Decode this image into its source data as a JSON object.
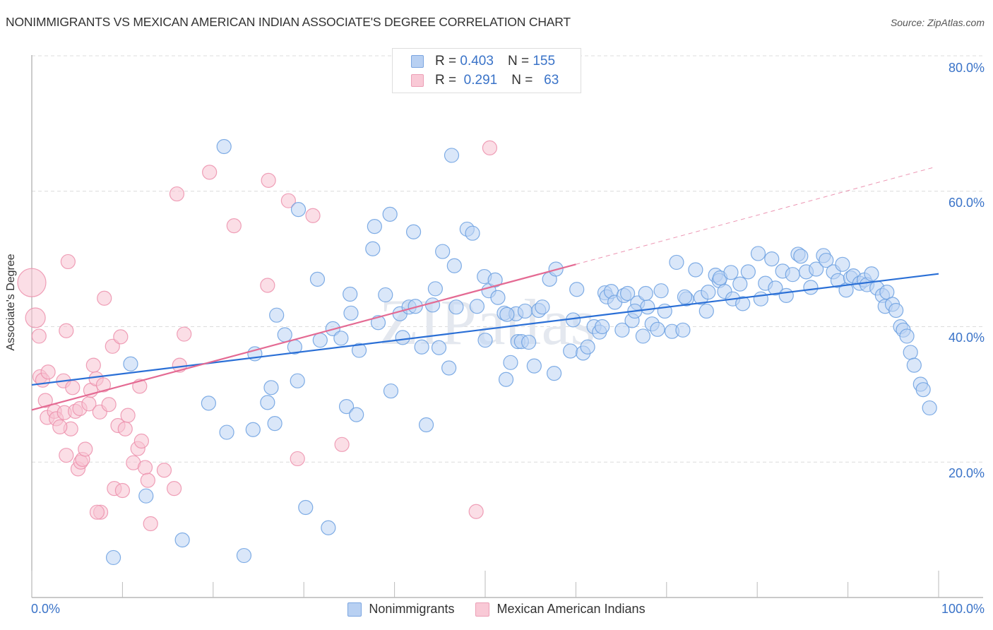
{
  "header": {
    "title": "NONIMMIGRANTS VS MEXICAN AMERICAN INDIAN ASSOCIATE'S DEGREE CORRELATION CHART",
    "source": "Source: ZipAtlas.com"
  },
  "legend": {
    "rows": [
      {
        "r_label": "R =",
        "r_value": "0.403",
        "n_label": "N =",
        "n_value": "155"
      },
      {
        "r_label": "R =",
        "r_value": "0.291",
        "n_label": "N =",
        "n_value": "63"
      }
    ]
  },
  "bottom_legend": [
    "Nonimmigrants",
    "Mexican American Indians"
  ],
  "watermark": "ZIPatlas",
  "chart_data": {
    "type": "scatter",
    "title": "NONIMMIGRANTS VS MEXICAN AMERICAN INDIAN ASSOCIATE'S DEGREE CORRELATION CHART",
    "xlabel": "",
    "ylabel": "Associate's Degree",
    "xlim": [
      0,
      100
    ],
    "ylim": [
      0,
      82
    ],
    "x_tick_labels": [
      "0.0%",
      "100.0%"
    ],
    "y_ticks": [
      20,
      40,
      60,
      80
    ],
    "y_tick_labels": [
      "20.0%",
      "40.0%",
      "60.0%",
      "80.0%"
    ],
    "grid": "horizontal-dashed",
    "legend_position": "top-center",
    "colors": {
      "Nonimmigrants": "#6a9fe0",
      "Mexican American Indians": "#ec8fab",
      "blue_line": "#2a6fd6",
      "pink_line": "#e46a93"
    },
    "series": [
      {
        "name": "Nonimmigrants",
        "R": 0.403,
        "N": 155,
        "trend": {
          "x0": 0,
          "y0": 31.4,
          "x1": 100,
          "y1": 47.8
        },
        "points": [
          [
            10.9,
            34.5
          ],
          [
            9.0,
            5.9
          ],
          [
            12.6,
            15.0
          ],
          [
            16.6,
            8.5
          ],
          [
            19.5,
            28.7
          ],
          [
            21.2,
            66.6
          ],
          [
            21.5,
            24.4
          ],
          [
            23.4,
            6.2
          ],
          [
            24.6,
            36.0
          ],
          [
            24.4,
            24.8
          ],
          [
            26.0,
            28.8
          ],
          [
            26.4,
            31.0
          ],
          [
            26.8,
            25.7
          ],
          [
            27.0,
            41.7
          ],
          [
            27.9,
            38.8
          ],
          [
            29.0,
            37.0
          ],
          [
            29.3,
            32.0
          ],
          [
            29.4,
            57.3
          ],
          [
            30.2,
            13.3
          ],
          [
            31.5,
            47.0
          ],
          [
            31.8,
            38.0
          ],
          [
            32.7,
            10.3
          ],
          [
            33.2,
            39.7
          ],
          [
            34.1,
            38.3
          ],
          [
            34.7,
            28.2
          ],
          [
            35.1,
            44.8
          ],
          [
            35.8,
            27.0
          ],
          [
            35.2,
            42.0
          ],
          [
            36.1,
            36.5
          ],
          [
            37.6,
            51.5
          ],
          [
            37.8,
            54.8
          ],
          [
            38.2,
            40.6
          ],
          [
            39.0,
            44.7
          ],
          [
            39.5,
            56.6
          ],
          [
            39.6,
            30.5
          ],
          [
            40.6,
            41.9
          ],
          [
            40.9,
            38.4
          ],
          [
            41.6,
            42.9
          ],
          [
            42.1,
            54.0
          ],
          [
            42.3,
            43.0
          ],
          [
            43.0,
            37.0
          ],
          [
            43.5,
            25.5
          ],
          [
            44.2,
            43.2
          ],
          [
            44.5,
            45.6
          ],
          [
            44.9,
            36.9
          ],
          [
            45.3,
            51.1
          ],
          [
            46.0,
            33.9
          ],
          [
            46.6,
            49.0
          ],
          [
            46.8,
            42.9
          ],
          [
            46.3,
            65.3
          ],
          [
            48.0,
            54.4
          ],
          [
            48.6,
            53.8
          ],
          [
            49.1,
            43.0
          ],
          [
            49.9,
            47.4
          ],
          [
            50.0,
            38.0
          ],
          [
            50.4,
            45.3
          ],
          [
            51.1,
            46.9
          ],
          [
            51.4,
            44.3
          ],
          [
            52.1,
            42.0
          ],
          [
            52.3,
            32.2
          ],
          [
            52.8,
            34.7
          ],
          [
            53.4,
            41.9
          ],
          [
            53.6,
            37.8
          ],
          [
            54.0,
            37.8
          ],
          [
            54.4,
            42.3
          ],
          [
            54.8,
            37.7
          ],
          [
            55.4,
            34.2
          ],
          [
            55.9,
            42.4
          ],
          [
            56.3,
            42.9
          ],
          [
            57.1,
            47.0
          ],
          [
            57.6,
            33.1
          ],
          [
            57.8,
            48.5
          ],
          [
            59.4,
            36.4
          ],
          [
            59.7,
            41.0
          ],
          [
            60.1,
            45.5
          ],
          [
            60.8,
            36.1
          ],
          [
            61.3,
            37.0
          ],
          [
            62.0,
            40.0
          ],
          [
            62.6,
            39.2
          ],
          [
            63.2,
            45.0
          ],
          [
            63.4,
            44.4
          ],
          [
            63.9,
            45.2
          ],
          [
            64.3,
            43.6
          ],
          [
            65.1,
            39.5
          ],
          [
            65.3,
            44.6
          ],
          [
            65.7,
            44.9
          ],
          [
            66.2,
            40.9
          ],
          [
            66.8,
            43.5
          ],
          [
            67.4,
            38.6
          ],
          [
            67.9,
            42.9
          ],
          [
            68.4,
            40.4
          ],
          [
            69.0,
            39.6
          ],
          [
            69.4,
            45.3
          ],
          [
            69.8,
            42.3
          ],
          [
            70.6,
            39.3
          ],
          [
            71.1,
            49.5
          ],
          [
            71.8,
            39.5
          ],
          [
            72.2,
            44.1
          ],
          [
            73.2,
            48.4
          ],
          [
            73.8,
            44.3
          ],
          [
            74.4,
            42.3
          ],
          [
            74.6,
            45.1
          ],
          [
            75.4,
            47.6
          ],
          [
            75.8,
            46.8
          ],
          [
            75.9,
            47.2
          ],
          [
            76.4,
            45.2
          ],
          [
            77.1,
            48.0
          ],
          [
            77.3,
            44.1
          ],
          [
            78.1,
            46.3
          ],
          [
            78.4,
            43.4
          ],
          [
            79.0,
            48.1
          ],
          [
            80.1,
            50.8
          ],
          [
            80.4,
            44.1
          ],
          [
            80.9,
            46.4
          ],
          [
            81.6,
            50.0
          ],
          [
            82.0,
            45.7
          ],
          [
            82.8,
            48.2
          ],
          [
            83.2,
            44.6
          ],
          [
            83.9,
            47.7
          ],
          [
            84.5,
            50.7
          ],
          [
            84.8,
            50.4
          ],
          [
            85.4,
            48.1
          ],
          [
            85.9,
            45.8
          ],
          [
            86.5,
            48.5
          ],
          [
            87.3,
            50.5
          ],
          [
            87.6,
            49.8
          ],
          [
            88.4,
            48.1
          ],
          [
            88.9,
            46.8
          ],
          [
            89.4,
            49.2
          ],
          [
            89.8,
            45.4
          ],
          [
            90.3,
            47.2
          ],
          [
            90.6,
            47.5
          ],
          [
            91.3,
            46.4
          ],
          [
            91.8,
            46.9
          ],
          [
            92.1,
            46.2
          ],
          [
            92.6,
            47.8
          ],
          [
            93.2,
            45.7
          ],
          [
            93.8,
            44.6
          ],
          [
            94.1,
            43.0
          ],
          [
            94.3,
            45.1
          ],
          [
            94.9,
            43.3
          ],
          [
            95.3,
            42.4
          ],
          [
            95.8,
            40.0
          ],
          [
            96.1,
            39.5
          ],
          [
            96.5,
            38.6
          ],
          [
            96.9,
            36.2
          ],
          [
            97.3,
            34.3
          ],
          [
            98.0,
            31.5
          ],
          [
            98.3,
            30.7
          ],
          [
            99.0,
            28.0
          ],
          [
            52.4,
            41.8
          ],
          [
            62.9,
            40.0
          ],
          [
            66.5,
            42.3
          ],
          [
            67.7,
            44.9
          ],
          [
            72.0,
            44.4
          ]
        ]
      },
      {
        "name": "Mexican American Indians",
        "R": 0.291,
        "N": 63,
        "trend": {
          "x0": 0,
          "y0": 27.7,
          "x1": 60,
          "y1": 49.2,
          "dashed_to_x": 99.4,
          "dashed_to_y": 63.5
        },
        "points": [
          [
            0.0,
            46.5
          ],
          [
            0.4,
            41.3
          ],
          [
            0.8,
            38.6
          ],
          [
            0.9,
            32.6
          ],
          [
            1.2,
            32.1
          ],
          [
            1.5,
            29.1
          ],
          [
            1.8,
            33.3
          ],
          [
            1.7,
            26.6
          ],
          [
            2.5,
            27.5
          ],
          [
            2.7,
            26.4
          ],
          [
            3.5,
            32.0
          ],
          [
            3.6,
            27.3
          ],
          [
            3.8,
            21.0
          ],
          [
            3.8,
            39.4
          ],
          [
            4.0,
            49.6
          ],
          [
            4.3,
            24.9
          ],
          [
            4.5,
            31.0
          ],
          [
            4.8,
            27.5
          ],
          [
            5.1,
            19.0
          ],
          [
            5.3,
            27.9
          ],
          [
            5.4,
            20.0
          ],
          [
            5.6,
            20.4
          ],
          [
            5.9,
            21.9
          ],
          [
            6.3,
            28.6
          ],
          [
            6.5,
            30.6
          ],
          [
            6.8,
            34.3
          ],
          [
            7.1,
            32.3
          ],
          [
            7.5,
            27.4
          ],
          [
            7.6,
            12.6
          ],
          [
            7.9,
            31.4
          ],
          [
            8.0,
            44.2
          ],
          [
            8.5,
            28.5
          ],
          [
            8.9,
            37.1
          ],
          [
            9.1,
            16.1
          ],
          [
            9.5,
            25.4
          ],
          [
            9.8,
            38.5
          ],
          [
            10.0,
            15.8
          ],
          [
            10.3,
            24.9
          ],
          [
            10.6,
            26.9
          ],
          [
            11.2,
            19.9
          ],
          [
            11.7,
            22.0
          ],
          [
            11.9,
            31.2
          ],
          [
            12.1,
            23.1
          ],
          [
            12.5,
            19.2
          ],
          [
            12.8,
            17.3
          ],
          [
            13.1,
            10.9
          ],
          [
            14.6,
            18.8
          ],
          [
            15.7,
            16.1
          ],
          [
            16.0,
            59.6
          ],
          [
            16.3,
            34.3
          ],
          [
            16.8,
            38.9
          ],
          [
            19.6,
            62.8
          ],
          [
            22.3,
            54.9
          ],
          [
            26.0,
            46.1
          ],
          [
            26.1,
            61.6
          ],
          [
            28.3,
            58.6
          ],
          [
            29.3,
            20.5
          ],
          [
            31.0,
            56.4
          ],
          [
            34.2,
            22.6
          ],
          [
            49.0,
            12.7
          ],
          [
            50.5,
            66.4
          ],
          [
            7.2,
            12.6
          ],
          [
            3.1,
            25.2
          ]
        ]
      }
    ]
  }
}
